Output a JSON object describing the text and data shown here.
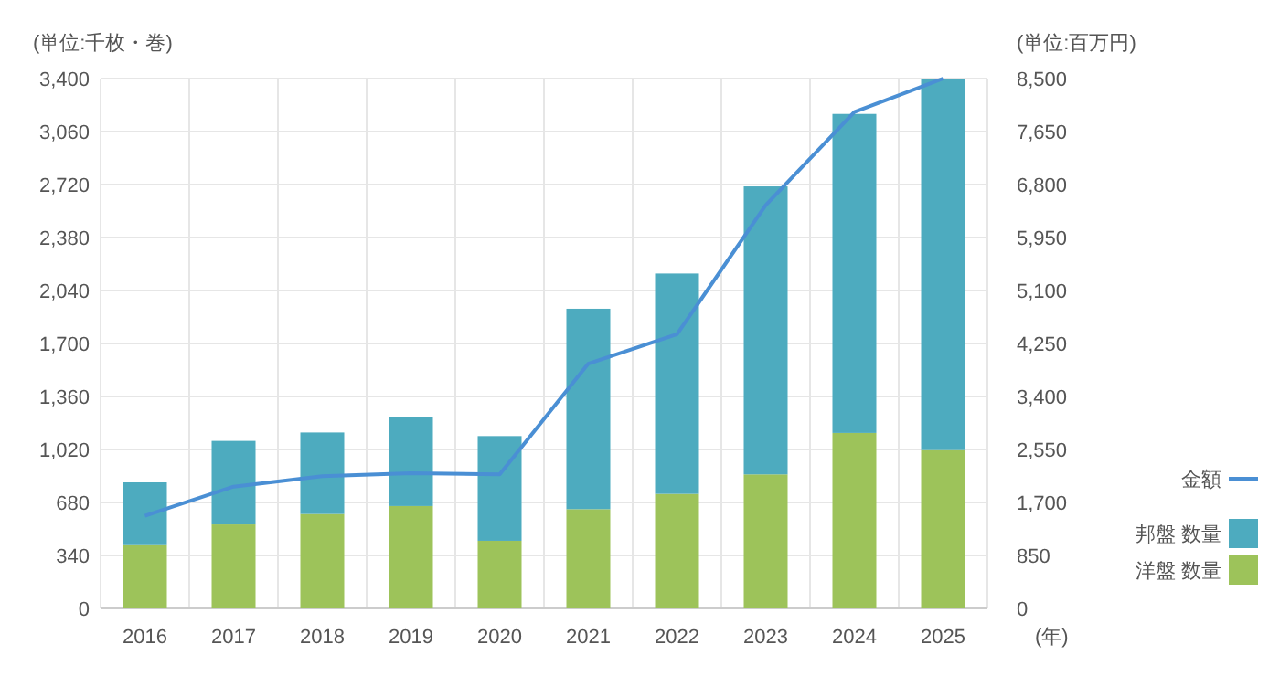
{
  "chart_data": {
    "type": "bar",
    "stacked": true,
    "categories": [
      "2016",
      "2017",
      "2018",
      "2019",
      "2020",
      "2021",
      "2022",
      "2023",
      "2024",
      "2025"
    ],
    "series": [
      {
        "name": "洋盤 数量",
        "color": "#9dc35a",
        "values": [
          406,
          539,
          606,
          657,
          434,
          637,
          735,
          860,
          1126,
          1016
        ]
      },
      {
        "name": "邦盤 数量",
        "color": "#4dabbf",
        "values": [
          403,
          536,
          523,
          574,
          672,
          1286,
          1414,
          1848,
          2047,
          2384
        ]
      },
      {
        "name": "金額",
        "type": "line",
        "axis": "y2",
        "color": "#4a8fd4",
        "values": [
          1485,
          1954,
          2120,
          2169,
          2149,
          3927,
          4397,
          6468,
          7963,
          8500
        ]
      }
    ],
    "ylabel": "(単位:千枚・巻)",
    "y2label": "(単位:百万円)",
    "xlabel": "(年)",
    "ylim": [
      0,
      3400
    ],
    "yticks": [
      0,
      340,
      680,
      {
        "value": 1020,
        "label": "1,020"
      },
      {
        "value": 1360,
        "label": "1,360"
      },
      {
        "value": 1700,
        "label": "1,700"
      },
      {
        "value": 2040,
        "label": "2,040"
      },
      {
        "value": 2380,
        "label": "2,380"
      },
      {
        "value": 2720,
        "label": "2,720"
      },
      {
        "value": 3060,
        "label": "3,060"
      },
      {
        "value": 3400,
        "label": "3,400"
      }
    ],
    "y2lim": [
      0,
      8500
    ],
    "y2ticks": [
      0,
      850,
      {
        "value": 1700,
        "label": "1,700"
      },
      {
        "value": 2550,
        "label": "2,550"
      },
      {
        "value": 3400,
        "label": "3,400"
      },
      {
        "value": 4250,
        "label": "4,250"
      },
      {
        "value": 5100,
        "label": "5,100"
      },
      {
        "value": 5950,
        "label": "5,950"
      },
      {
        "value": 6800,
        "label": "6,800"
      },
      {
        "value": 7650,
        "label": "7,650"
      },
      {
        "value": 8500,
        "label": "8,500"
      }
    ],
    "grid": true,
    "legend": "right",
    "marker": "none"
  }
}
